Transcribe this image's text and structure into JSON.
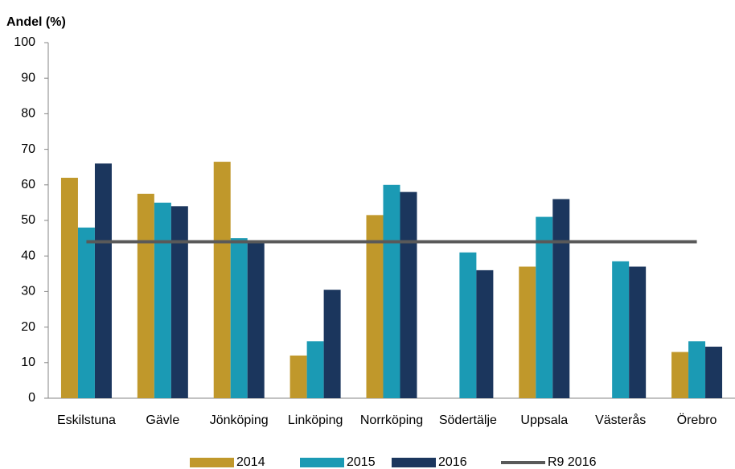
{
  "chart_data": {
    "type": "bar",
    "title": "Andel (%)",
    "categories": [
      "Eskilstuna",
      "Gävle",
      "Jönköping",
      "Linköping",
      "Norrköping",
      "Södertälje",
      "Uppsala",
      "Västerås",
      "Örebro"
    ],
    "series": [
      {
        "name": "2014",
        "color": "#c0982b",
        "values": [
          62,
          57.5,
          66.5,
          12,
          51.5,
          null,
          37,
          null,
          13
        ]
      },
      {
        "name": "2015",
        "color": "#1b9ab4",
        "values": [
          48,
          55,
          45,
          16,
          60,
          41,
          51,
          38.5,
          16
        ]
      },
      {
        "name": "2016",
        "color": "#1b365d",
        "values": [
          66,
          54,
          44,
          30.5,
          58,
          36,
          56,
          37,
          14.5
        ]
      },
      {
        "name": "R9 2016",
        "color": "#595959",
        "type": "line",
        "values": [
          44,
          44,
          44,
          44,
          44,
          44,
          44,
          44,
          44
        ]
      }
    ],
    "ylim": [
      0,
      100
    ],
    "yticks": [
      0,
      10,
      20,
      30,
      40,
      50,
      60,
      70,
      80,
      90,
      100
    ],
    "grid": false,
    "legend": "bottom"
  }
}
